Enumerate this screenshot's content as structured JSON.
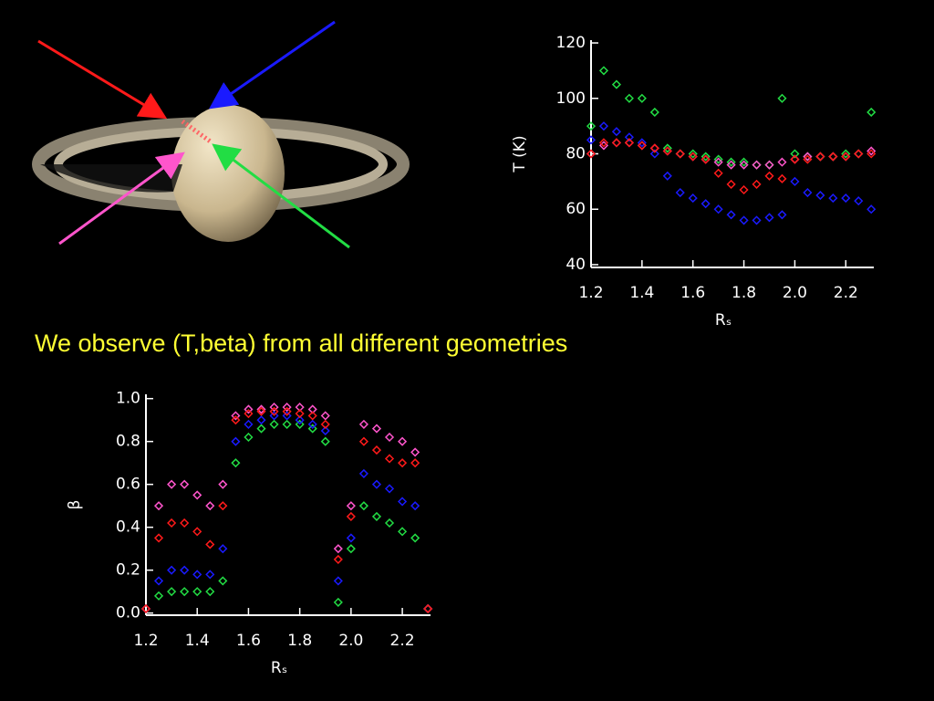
{
  "caption": "We observe (T,beta) from all different geometries",
  "chart_data": [
    {
      "type": "scatter",
      "xlabel": "Rₛ",
      "ylabel": "T (K)",
      "x": [
        1.2,
        1.25,
        1.3,
        1.35,
        1.4,
        1.45,
        1.5,
        1.55,
        1.6,
        1.65,
        1.7,
        1.75,
        1.8,
        1.85,
        1.9,
        1.95,
        2.0,
        2.05,
        2.1,
        2.15,
        2.2,
        2.25,
        2.3
      ],
      "series": [
        {
          "color": "#22dd44",
          "values": [
            90,
            110,
            105,
            100,
            100,
            95,
            82,
            80,
            80,
            79,
            78,
            77,
            77,
            76,
            76,
            100,
            80,
            79,
            79,
            79,
            80,
            80,
            95
          ]
        },
        {
          "color": "#1a1aff",
          "values": [
            85,
            90,
            88,
            86,
            84,
            80,
            72,
            66,
            64,
            62,
            60,
            58,
            56,
            56,
            57,
            58,
            70,
            66,
            65,
            64,
            64,
            63,
            60
          ]
        },
        {
          "color": "#ff55cc",
          "values": [
            80,
            83,
            84,
            84,
            83,
            82,
            81,
            80,
            79,
            78,
            77,
            76,
            76,
            76,
            76,
            77,
            78,
            79,
            79,
            79,
            79,
            80,
            81
          ]
        },
        {
          "color": "#ff1a1a",
          "values": [
            80,
            84,
            84,
            84,
            83,
            82,
            81,
            80,
            79,
            78,
            73,
            69,
            67,
            69,
            72,
            71,
            78,
            78,
            79,
            79,
            79,
            80,
            80
          ]
        }
      ],
      "xlim": [
        1.2,
        2.31
      ],
      "xticks": [
        1.2,
        1.4,
        1.6,
        1.8,
        {
          "value": 2,
          "label": "2.0"
        },
        2.2
      ],
      "ylim": [
        39,
        121
      ],
      "yticks": [
        40,
        60,
        80,
        100,
        120
      ]
    },
    {
      "type": "scatter",
      "xlabel": "Rₛ",
      "ylabel": "β",
      "x": [
        1.2,
        1.25,
        1.3,
        1.35,
        1.4,
        1.45,
        1.5,
        1.55,
        1.6,
        1.65,
        1.7,
        1.75,
        1.8,
        1.85,
        1.9,
        1.95,
        2.0,
        2.05,
        2.1,
        2.15,
        2.2,
        2.25,
        2.3
      ],
      "series": [
        {
          "color": "#22dd44",
          "values": [
            0.02,
            0.08,
            0.1,
            0.1,
            0.1,
            0.1,
            0.15,
            0.7,
            0.82,
            0.86,
            0.88,
            0.88,
            0.88,
            0.86,
            0.8,
            0.05,
            0.3,
            0.5,
            0.45,
            0.42,
            0.38,
            0.35,
            0.02
          ]
        },
        {
          "color": "#1a1aff",
          "values": [
            0.02,
            0.15,
            0.2,
            0.2,
            0.18,
            0.18,
            0.3,
            0.8,
            0.88,
            0.9,
            0.92,
            0.92,
            0.9,
            0.88,
            0.85,
            0.15,
            0.35,
            0.65,
            0.6,
            0.58,
            0.52,
            0.5,
            0.02
          ]
        },
        {
          "color": "#ff55cc",
          "values": [
            0.02,
            0.5,
            0.6,
            0.6,
            0.55,
            0.5,
            0.6,
            0.92,
            0.95,
            0.95,
            0.96,
            0.96,
            0.96,
            0.95,
            0.92,
            0.3,
            0.5,
            0.88,
            0.86,
            0.82,
            0.8,
            0.75,
            0.02
          ]
        },
        {
          "color": "#ff1a1a",
          "values": [
            0.02,
            0.35,
            0.42,
            0.42,
            0.38,
            0.32,
            0.5,
            0.9,
            0.93,
            0.94,
            0.94,
            0.94,
            0.93,
            0.92,
            0.88,
            0.25,
            0.45,
            0.8,
            0.76,
            0.72,
            0.7,
            0.7,
            0.02
          ]
        }
      ],
      "xlim": [
        1.2,
        2.31
      ],
      "xticks": [
        1.2,
        1.4,
        1.6,
        1.8,
        {
          "value": 2,
          "label": "2.0"
        },
        2.2
      ],
      "ylim": [
        -0.01,
        1.02
      ],
      "yticks": [
        {
          "value": 0,
          "label": "0.0"
        },
        0.2,
        0.4,
        0.6,
        0.8,
        {
          "value": 1,
          "label": "1.0"
        }
      ]
    }
  ]
}
